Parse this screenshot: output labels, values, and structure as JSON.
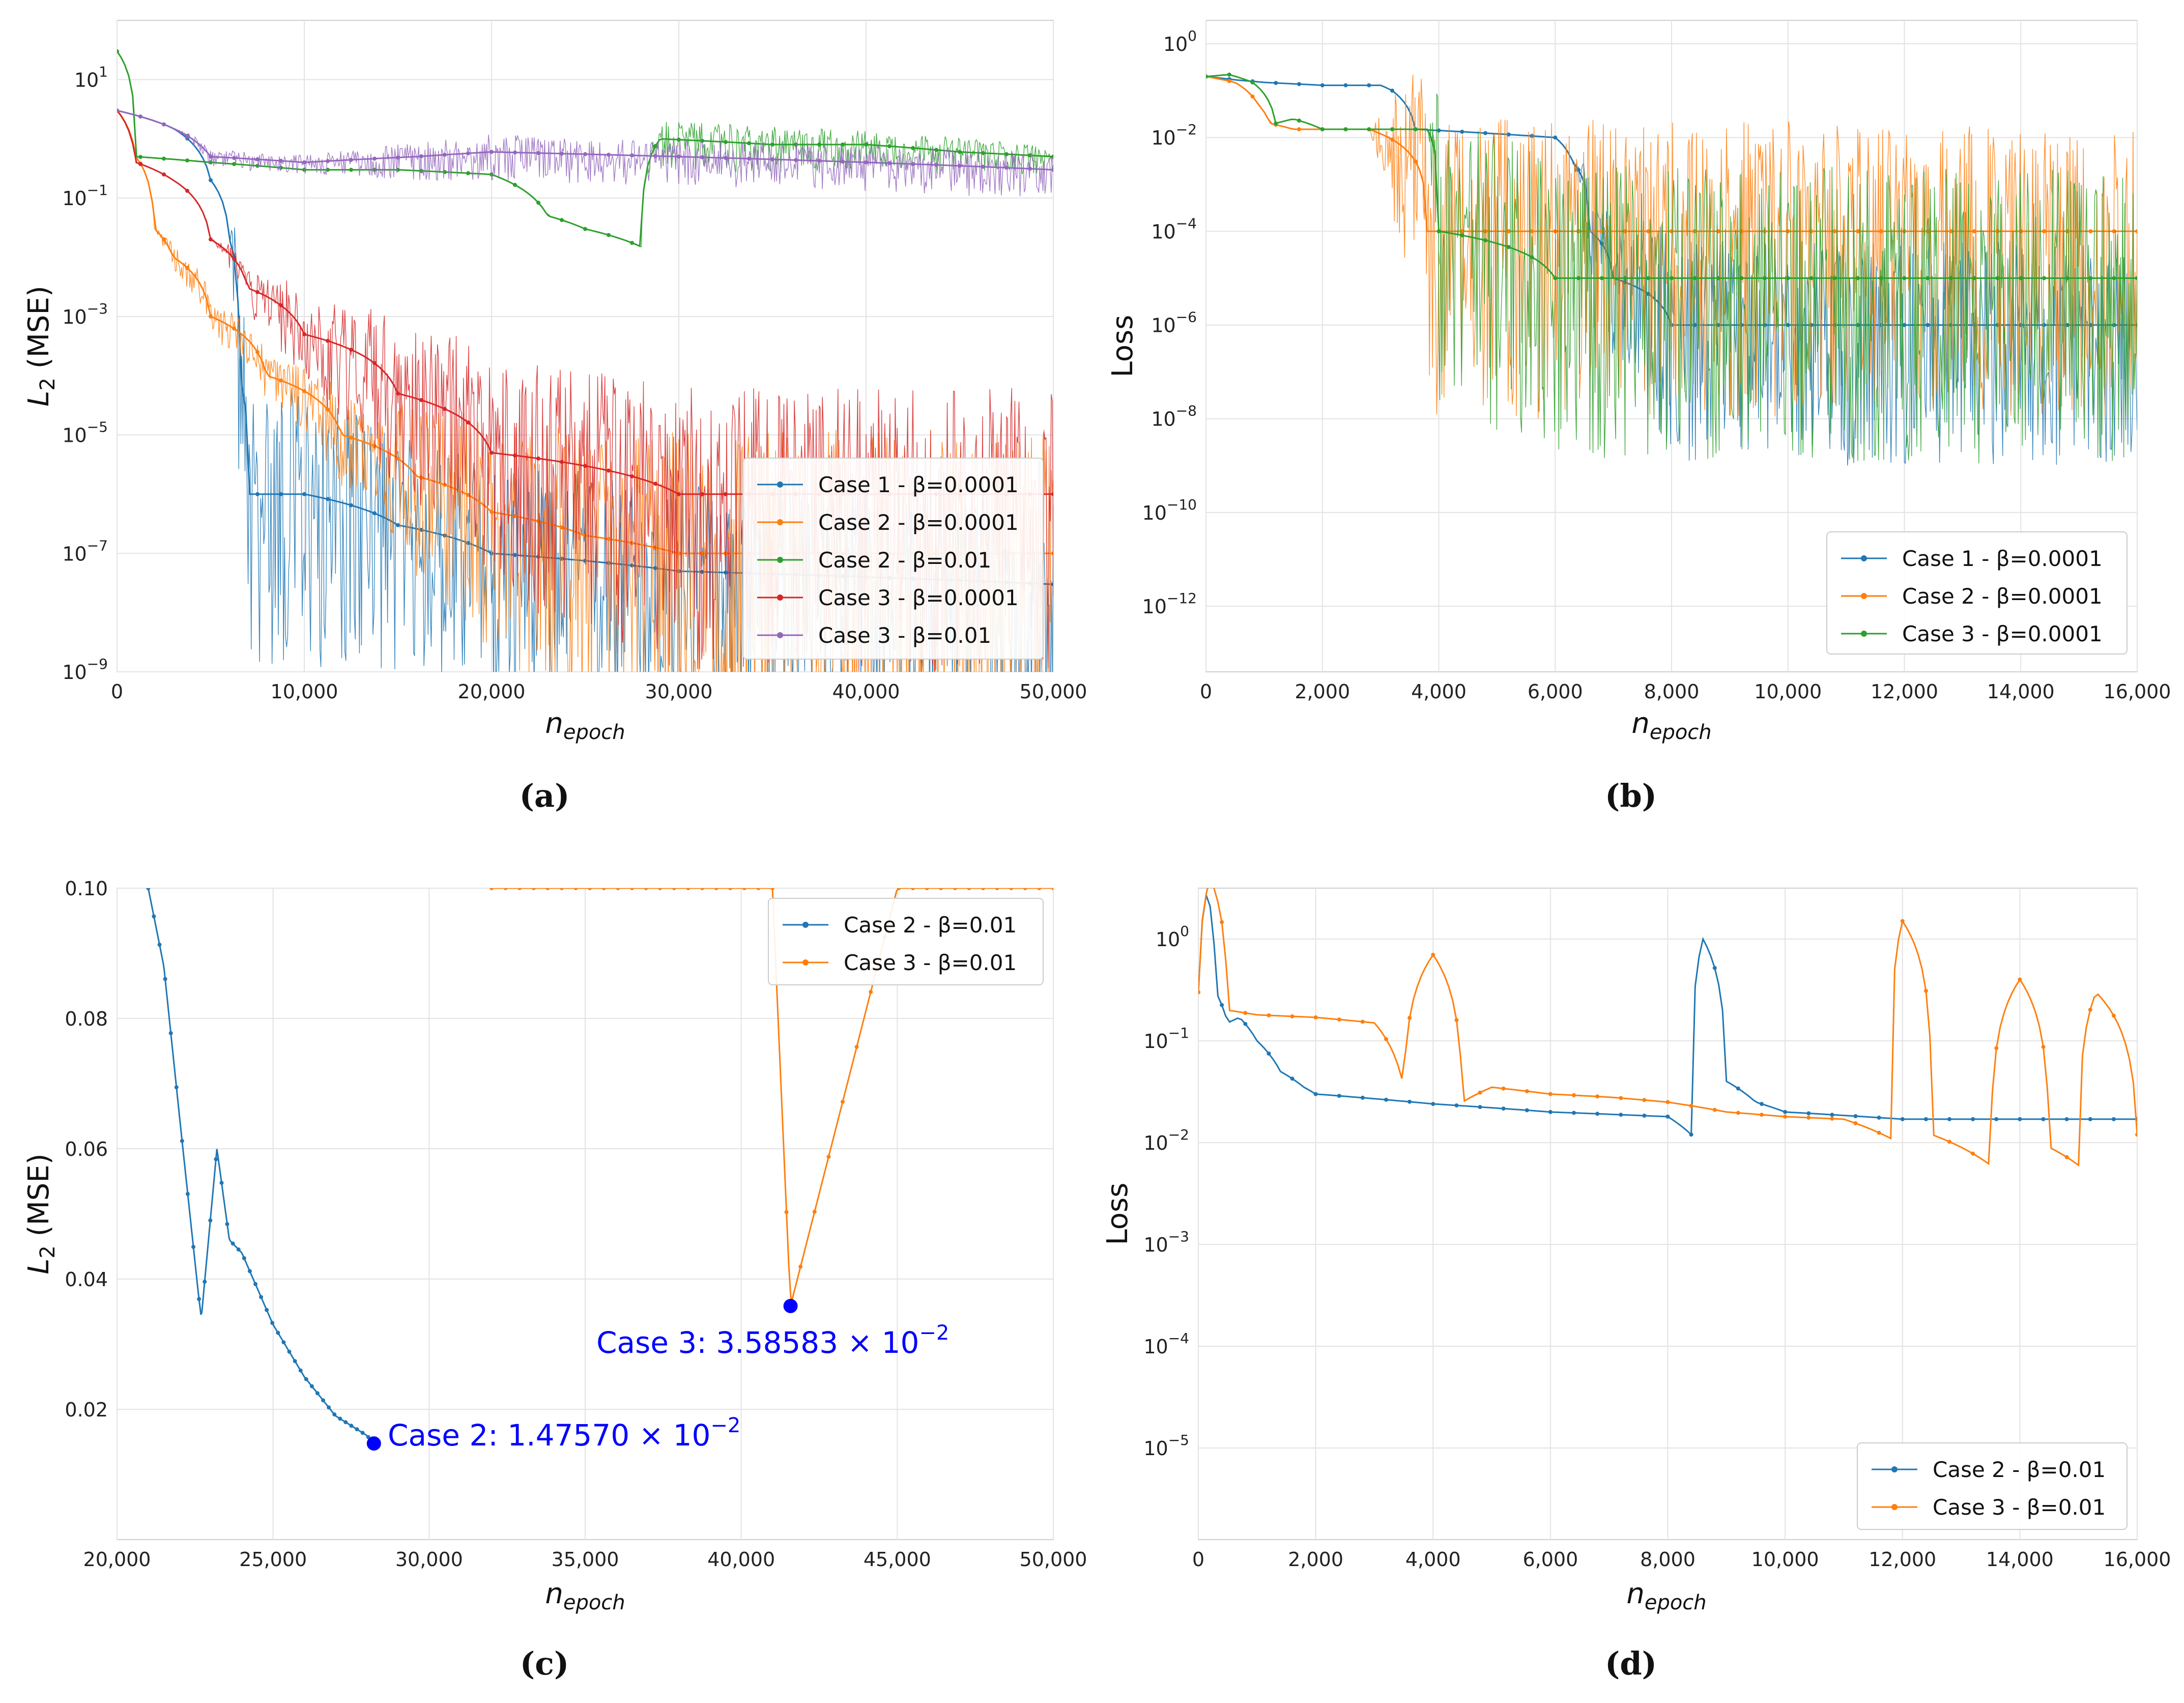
{
  "chart_data": [
    {
      "id": "a",
      "type": "line",
      "caption": "(a)",
      "xlabel": "n",
      "xlabel_sub": "epoch",
      "ylabel": "L",
      "ylabel_sub": "2",
      "ylabel_suffix": " (MSE)",
      "yscale": "log",
      "xlim": [
        0,
        50000
      ],
      "ylim_exp": [
        -9,
        2
      ],
      "xticks": [
        0,
        10000,
        20000,
        30000,
        40000,
        50000
      ],
      "xtick_labels": [
        "0",
        "10,000",
        "20,000",
        "30,000",
        "40,000",
        "50,000"
      ],
      "yticks_exp": [
        -9,
        -7,
        -5,
        -3,
        -1,
        1
      ],
      "ytick_labels": [
        "10",
        "10",
        "10",
        "10",
        "10",
        "10"
      ],
      "ytick_sups": [
        "−9",
        "−7",
        "−5",
        "−3",
        "−1",
        "1"
      ],
      "grid": true,
      "legend_position": "lower-right",
      "series": [
        {
          "name": "Case 1 - β=0.0001",
          "color": "#1f77b4",
          "x": [
            0,
            1000,
            3000,
            5000,
            6000,
            6500,
            7000,
            10000,
            15000,
            20000,
            30000,
            40000,
            50000
          ],
          "y": [
            3,
            2.5,
            1.5,
            0.2,
            0.02,
            0.0001,
            1e-06,
            1e-06,
            3e-07,
            1e-07,
            5e-08,
            4e-08,
            3e-08
          ],
          "noise": [
            0,
            0,
            0,
            0,
            0,
            2,
            3,
            3,
            2.5,
            2.5,
            2.5,
            2.5,
            2.5
          ]
        },
        {
          "name": "Case 2 - β=0.0001",
          "color": "#ff7f0e",
          "x": [
            0,
            1000,
            2000,
            3000,
            5000,
            8000,
            12000,
            16000,
            20000,
            25000,
            30000,
            40000,
            50000
          ],
          "y": [
            3,
            0.5,
            0.03,
            0.01,
            0.001,
            0.0001,
            1e-05,
            2e-06,
            5e-07,
            2e-07,
            1e-07,
            1e-07,
            1e-07
          ],
          "noise": [
            0,
            0,
            0,
            0.3,
            0.4,
            0.5,
            1,
            1.8,
            2.5,
            3,
            3.5,
            3.5,
            3.5
          ]
        },
        {
          "name": "Case 2 - β=0.01",
          "color": "#2ca02c",
          "x": [
            0,
            1000,
            5000,
            10000,
            15000,
            20000,
            23000,
            25000,
            28000,
            29000,
            35000,
            40000,
            45000,
            50000
          ],
          "y": [
            30,
            0.5,
            0.4,
            0.3,
            0.3,
            0.25,
            0.05,
            0.03,
            0.015,
            1,
            0.8,
            0.8,
            0.6,
            0.5
          ],
          "noise": [
            0,
            0,
            0,
            0,
            0,
            0,
            0,
            0,
            0,
            0.5,
            0.5,
            0.4,
            0.4,
            0.3
          ]
        },
        {
          "name": "Case 3 - β=0.0001",
          "color": "#d62728",
          "x": [
            0,
            1000,
            3000,
            5000,
            7000,
            10000,
            15000,
            20000,
            30000,
            40000,
            50000
          ],
          "y": [
            3,
            0.4,
            0.2,
            0.02,
            0.003,
            0.0005,
            5e-05,
            5e-06,
            1e-06,
            1e-06,
            1e-06
          ],
          "noise": [
            0,
            0,
            0,
            0,
            0.5,
            1,
            1.8,
            2.5,
            3,
            3,
            3
          ]
        },
        {
          "name": "Case 3 - β=0.01",
          "color": "#9467bd",
          "x": [
            0,
            3000,
            5000,
            10000,
            16000,
            20000,
            30000,
            40000,
            50000
          ],
          "y": [
            3,
            1.5,
            0.5,
            0.4,
            0.5,
            0.6,
            0.5,
            0.4,
            0.3
          ],
          "noise": [
            0,
            0,
            0.2,
            0.2,
            0.4,
            0.5,
            0.5,
            0.5,
            0.5
          ]
        }
      ]
    },
    {
      "id": "b",
      "type": "line",
      "caption": "(b)",
      "xlabel": "n",
      "xlabel_sub": "epoch",
      "ylabel": "Loss",
      "yscale": "log",
      "xlim": [
        0,
        16000
      ],
      "ylim_exp": [
        -13.4,
        0.5
      ],
      "xticks": [
        0,
        2000,
        4000,
        6000,
        8000,
        10000,
        12000,
        14000,
        16000
      ],
      "xtick_labels": [
        "0",
        "2,000",
        "4,000",
        "6,000",
        "8,000",
        "10,000",
        "12,000",
        "14,000",
        "16,000"
      ],
      "yticks_exp": [
        -12,
        -10,
        -8,
        -6,
        -4,
        -2,
        0
      ],
      "ytick_labels": [
        "10",
        "10",
        "10",
        "10",
        "10",
        "10",
        "10"
      ],
      "ytick_sups": [
        "−12",
        "−10",
        "−8",
        "−6",
        "−4",
        "−2",
        "0"
      ],
      "grid": true,
      "legend_position": "lower-right",
      "series": [
        {
          "name": "Case 1 - β=0.0001",
          "color": "#1f77b4",
          "x": [
            0,
            500,
            1000,
            2000,
            3000,
            3200,
            3600,
            5000,
            6000,
            6300,
            6600,
            7000,
            8000,
            10000,
            12000,
            14000,
            16000
          ],
          "y": [
            0.2,
            0.17,
            0.15,
            0.13,
            0.13,
            0.1,
            0.015,
            0.012,
            0.01,
            0.003,
            0.0001,
            1e-05,
            1e-06,
            1e-06,
            1e-06,
            1e-06,
            1e-06
          ],
          "noise": [
            0,
            0,
            0,
            0,
            0,
            0,
            0,
            0,
            0,
            0,
            1,
            2,
            3,
            3,
            3,
            3,
            3
          ]
        },
        {
          "name": "Case 2 - β=0.0001",
          "color": "#ff7f0e",
          "x": [
            0,
            500,
            900,
            1100,
            1500,
            2000,
            2800,
            3800,
            5000,
            8000,
            12000,
            16000
          ],
          "y": [
            0.2,
            0.15,
            0.05,
            0.02,
            0.015,
            0.015,
            0.015,
            0.0001,
            0.0001,
            0.0001,
            0.0001,
            0.0001
          ],
          "noise": [
            0,
            0,
            0,
            0,
            0,
            0,
            0,
            4,
            4,
            4,
            4,
            4
          ]
        },
        {
          "name": "Case 3 - β=0.0001",
          "color": "#2ca02c",
          "x": [
            0,
            400,
            800,
            1200,
            1500,
            2000,
            3000,
            3800,
            4000,
            6000,
            8000,
            10000,
            12000,
            14000,
            16000
          ],
          "y": [
            0.2,
            0.22,
            0.15,
            0.02,
            0.025,
            0.015,
            0.015,
            0.015,
            0.0001,
            1e-05,
            1e-05,
            1e-05,
            1e-05,
            1e-05,
            1e-05
          ],
          "noise": [
            0,
            0,
            0,
            0,
            0,
            0,
            0,
            0,
            4,
            4,
            4,
            4,
            4,
            4,
            4
          ]
        }
      ]
    },
    {
      "id": "c",
      "type": "line",
      "caption": "(c)",
      "xlabel": "n",
      "xlabel_sub": "epoch",
      "ylabel": "L",
      "ylabel_sub": "2",
      "ylabel_suffix": " (MSE)",
      "yscale": "linear",
      "xlim": [
        20000,
        50000
      ],
      "ylim": [
        0,
        0.1
      ],
      "xticks": [
        20000,
        25000,
        30000,
        35000,
        40000,
        45000,
        50000
      ],
      "xtick_labels": [
        "20,000",
        "25,000",
        "30,000",
        "35,000",
        "40,000",
        "45,000",
        "50,000"
      ],
      "yticks": [
        0.02,
        0.04,
        0.06,
        0.08,
        0.1
      ],
      "ytick_labels": [
        "0.02",
        "0.04",
        "0.06",
        "0.08",
        "0.10"
      ],
      "grid": true,
      "legend_position": "top-right",
      "series": [
        {
          "name": "Case 2 - β=0.01",
          "color": "#1f77b4",
          "x": [
            21000,
            21500,
            22000,
            22600,
            22700,
            23200,
            23600,
            24000,
            25000,
            26000,
            27000,
            28000,
            28230
          ],
          "y": [
            0.1,
            0.088,
            0.065,
            0.038,
            0.034,
            0.06,
            0.046,
            0.044,
            0.033,
            0.025,
            0.019,
            0.016,
            0.0148
          ]
        },
        {
          "name": "Case 3 - β=0.01",
          "color": "#ff7f0e",
          "x": [
            32000,
            35000,
            38000,
            41000,
            41580,
            45000,
            50000
          ],
          "y": [
            0.1,
            0.1,
            0.1,
            0.1,
            0.0359,
            0.1,
            0.1
          ]
        }
      ],
      "annotations": [
        {
          "text": "Case 2: 1.47570 × 10",
          "sup": "−2",
          "x": 28230,
          "y": 0.014757
        },
        {
          "text": "Case 3: 3.58583 × 10",
          "sup": "−2",
          "x": 41580,
          "y": 0.0358583
        }
      ]
    },
    {
      "id": "d",
      "type": "line",
      "caption": "(d)",
      "xlabel": "n",
      "xlabel_sub": "epoch",
      "ylabel": "Loss",
      "yscale": "log",
      "xlim": [
        0,
        16000
      ],
      "ylim_exp": [
        -5.9,
        0.5
      ],
      "xticks": [
        0,
        2000,
        4000,
        6000,
        8000,
        10000,
        12000,
        14000,
        16000
      ],
      "xtick_labels": [
        "0",
        "2,000",
        "4,000",
        "6,000",
        "8,000",
        "10,000",
        "12,000",
        "14,000",
        "16,000"
      ],
      "yticks_exp": [
        -5,
        -4,
        -3,
        -2,
        -1,
        0
      ],
      "ytick_labels": [
        "10",
        "10",
        "10",
        "10",
        "10",
        "10"
      ],
      "ytick_sups": [
        "−5",
        "−4",
        "−3",
        "−2",
        "−1",
        "0"
      ],
      "grid": true,
      "legend_position": "lower-right",
      "series": [
        {
          "name": "Case 2 - β=0.01",
          "color": "#1f77b4",
          "x": [
            0,
            150,
            300,
            500,
            700,
            1000,
            1400,
            1800,
            2000,
            3000,
            4000,
            5000,
            6000,
            7000,
            8000,
            8400,
            8600,
            9000,
            9500,
            10000,
            12000,
            14000,
            16000
          ],
          "y": [
            0.3,
            3,
            0.3,
            0.15,
            0.17,
            0.1,
            0.05,
            0.035,
            0.03,
            0.027,
            0.024,
            0.022,
            0.02,
            0.019,
            0.018,
            0.012,
            1,
            0.04,
            0.025,
            0.02,
            0.017,
            0.017,
            0.017
          ]
        },
        {
          "name": "Case 3 - β=0.01",
          "color": "#ff7f0e",
          "x": [
            0,
            200,
            500,
            1000,
            2000,
            3000,
            3500,
            4000,
            4500,
            5000,
            6000,
            7000,
            8000,
            9000,
            10000,
            11000,
            11800,
            12000,
            12500,
            13500,
            14000,
            14500,
            15000,
            15300,
            16000
          ],
          "y": [
            0.3,
            4,
            0.2,
            0.18,
            0.17,
            0.15,
            0.035,
            0.7,
            0.025,
            0.035,
            0.03,
            0.028,
            0.025,
            0.02,
            0.018,
            0.017,
            0.011,
            1.5,
            0.012,
            0.006,
            0.4,
            0.009,
            0.006,
            0.3,
            0.012
          ]
        }
      ]
    }
  ]
}
